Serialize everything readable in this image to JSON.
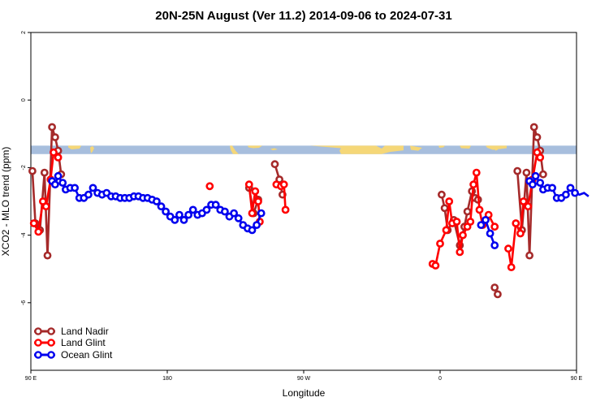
{
  "chart_data": {
    "type": "line",
    "title": "20N-25N August (Ver 11.2)   2014-09-06 to 2024-07-31",
    "xlabel": "Longitude",
    "ylabel": "XCO2 - MLO trend (ppm)",
    "xlim": [
      90,
      450
    ],
    "ylim": [
      -8,
      2
    ],
    "x_ticks": [
      {
        "value": 90,
        "label": "90 E"
      },
      {
        "value": 180,
        "label": "180"
      },
      {
        "value": 270,
        "label": "90 W"
      },
      {
        "value": 360,
        "label": "0"
      },
      {
        "value": 450,
        "label": "90 E"
      },
      {
        "value": 540,
        "label": "180"
      }
    ],
    "y_ticks": [
      {
        "value": 2,
        "label": "2"
      },
      {
        "value": 0,
        "label": "0"
      },
      {
        "value": -2,
        "label": "-2"
      },
      {
        "value": -4,
        "label": "-4"
      },
      {
        "value": -6,
        "label": "-6"
      }
    ],
    "legend_position": "bottom-left",
    "grid": false,
    "map_strip": {
      "y_top": -1.35,
      "y_bottom": -1.6,
      "ocean_color": "#a7bedd",
      "land_color": "#f5d778"
    },
    "series": [
      {
        "name": "Land Nadir",
        "color": "#a52a2a",
        "points": [
          [
            91,
            -2.1
          ],
          [
            93,
            -3.65
          ],
          [
            96,
            -3.85
          ],
          [
            99,
            -2.15
          ],
          [
            101,
            -4.6
          ],
          [
            104,
            -0.8
          ],
          [
            106,
            -1.1
          ],
          [
            108,
            -1.5
          ],
          [
            110,
            -2.2
          ],
          [
            234,
            -2.6
          ],
          [
            237,
            -3.35
          ],
          [
            240,
            -2.95
          ],
          [
            251,
            -1.9
          ],
          [
            254,
            -2.35
          ],
          [
            256,
            -2.8
          ],
          [
            361,
            -2.8
          ],
          [
            363,
            -3.2
          ],
          [
            365,
            -3.85
          ],
          [
            369,
            -3.55
          ],
          [
            373,
            -4.3
          ],
          [
            376,
            -3.75
          ],
          [
            378,
            -3.3
          ],
          [
            381,
            -2.7
          ],
          [
            383,
            -2.9
          ],
          [
            385,
            -2.95
          ],
          [
            396,
            -5.55
          ],
          [
            398,
            -5.75
          ],
          [
            411,
            -2.1
          ],
          [
            414,
            -3.85
          ],
          [
            417,
            -2.15
          ],
          [
            419,
            -4.6
          ],
          [
            422,
            -0.8
          ],
          [
            424,
            -1.1
          ],
          [
            426,
            -1.5
          ],
          [
            428,
            -2.2
          ]
        ]
      },
      {
        "name": "Land Glint",
        "color": "#ff0000",
        "points": [
          [
            92,
            -3.65
          ],
          [
            95,
            -3.9
          ],
          [
            98,
            -3.0
          ],
          [
            100,
            -3.15
          ],
          [
            103,
            -2.35
          ],
          [
            105,
            -1.55
          ],
          [
            108,
            -1.7
          ],
          [
            208,
            -2.55
          ],
          [
            234,
            -2.5
          ],
          [
            236,
            -3.35
          ],
          [
            238,
            -2.7
          ],
          [
            240,
            -3.0
          ],
          [
            241,
            -3.6
          ],
          [
            252,
            -2.5
          ],
          [
            255,
            -2.55
          ],
          [
            257,
            -2.5
          ],
          [
            258,
            -3.25
          ],
          [
            355,
            -4.85
          ],
          [
            357,
            -4.9
          ],
          [
            360,
            -4.25
          ],
          [
            364,
            -3.85
          ],
          [
            366,
            -3.0
          ],
          [
            368,
            -3.65
          ],
          [
            371,
            -3.6
          ],
          [
            373,
            -4.5
          ],
          [
            375,
            -4.0
          ],
          [
            378,
            -3.75
          ],
          [
            380,
            -3.6
          ],
          [
            382,
            -2.5
          ],
          [
            384,
            -2.15
          ],
          [
            386,
            -3.25
          ],
          [
            388,
            -3.7
          ],
          [
            392,
            -3.4
          ],
          [
            396,
            -3.75
          ],
          [
            405,
            -4.4
          ],
          [
            407,
            -4.95
          ],
          [
            410,
            -3.65
          ],
          [
            413,
            -3.95
          ],
          [
            415,
            -3.0
          ],
          [
            418,
            -3.15
          ],
          [
            421,
            -2.35
          ],
          [
            424,
            -1.55
          ],
          [
            426,
            -1.7
          ]
        ]
      },
      {
        "name": "Ocean Glint",
        "color": "#0000ee",
        "points": [
          [
            104,
            -2.4
          ],
          [
            106,
            -2.5
          ],
          [
            108,
            -2.25
          ],
          [
            111,
            -2.45
          ],
          [
            113,
            -2.65
          ],
          [
            116,
            -2.6
          ],
          [
            119,
            -2.6
          ],
          [
            122,
            -2.9
          ],
          [
            125,
            -2.9
          ],
          [
            128,
            -2.8
          ],
          [
            131,
            -2.6
          ],
          [
            134,
            -2.75
          ],
          [
            137,
            -2.8
          ],
          [
            140,
            -2.75
          ],
          [
            143,
            -2.85
          ],
          [
            146,
            -2.85
          ],
          [
            149,
            -2.9
          ],
          [
            152,
            -2.9
          ],
          [
            155,
            -2.9
          ],
          [
            158,
            -2.85
          ],
          [
            161,
            -2.85
          ],
          [
            164,
            -2.9
          ],
          [
            167,
            -2.9
          ],
          [
            170,
            -2.95
          ],
          [
            173,
            -3.0
          ],
          [
            176,
            -3.15
          ],
          [
            179,
            -3.3
          ],
          [
            182,
            -3.45
          ],
          [
            185,
            -3.55
          ],
          [
            188,
            -3.4
          ],
          [
            191,
            -3.55
          ],
          [
            194,
            -3.4
          ],
          [
            197,
            -3.25
          ],
          [
            200,
            -3.4
          ],
          [
            203,
            -3.35
          ],
          [
            206,
            -3.25
          ],
          [
            209,
            -3.1
          ],
          [
            212,
            -3.1
          ],
          [
            215,
            -3.25
          ],
          [
            218,
            -3.3
          ],
          [
            221,
            -3.45
          ],
          [
            224,
            -3.35
          ],
          [
            227,
            -3.5
          ],
          [
            230,
            -3.7
          ],
          [
            233,
            -3.8
          ],
          [
            236,
            -3.85
          ],
          [
            239,
            -3.7
          ],
          [
            242,
            -3.35
          ],
          [
            387,
            -3.7
          ],
          [
            390,
            -3.55
          ],
          [
            393,
            -3.95
          ],
          [
            396,
            -4.3
          ],
          [
            419,
            -2.4
          ],
          [
            421,
            -2.5
          ],
          [
            423,
            -2.25
          ],
          [
            426,
            -2.45
          ],
          [
            428,
            -2.65
          ],
          [
            431,
            -2.6
          ],
          [
            434,
            -2.6
          ],
          [
            437,
            -2.9
          ],
          [
            440,
            -2.9
          ],
          [
            443,
            -2.8
          ],
          [
            446,
            -2.6
          ],
          [
            449,
            -2.75
          ],
          [
            452,
            -2.8
          ],
          [
            455,
            -2.75
          ],
          [
            458,
            -2.85
          ]
        ]
      }
    ]
  }
}
